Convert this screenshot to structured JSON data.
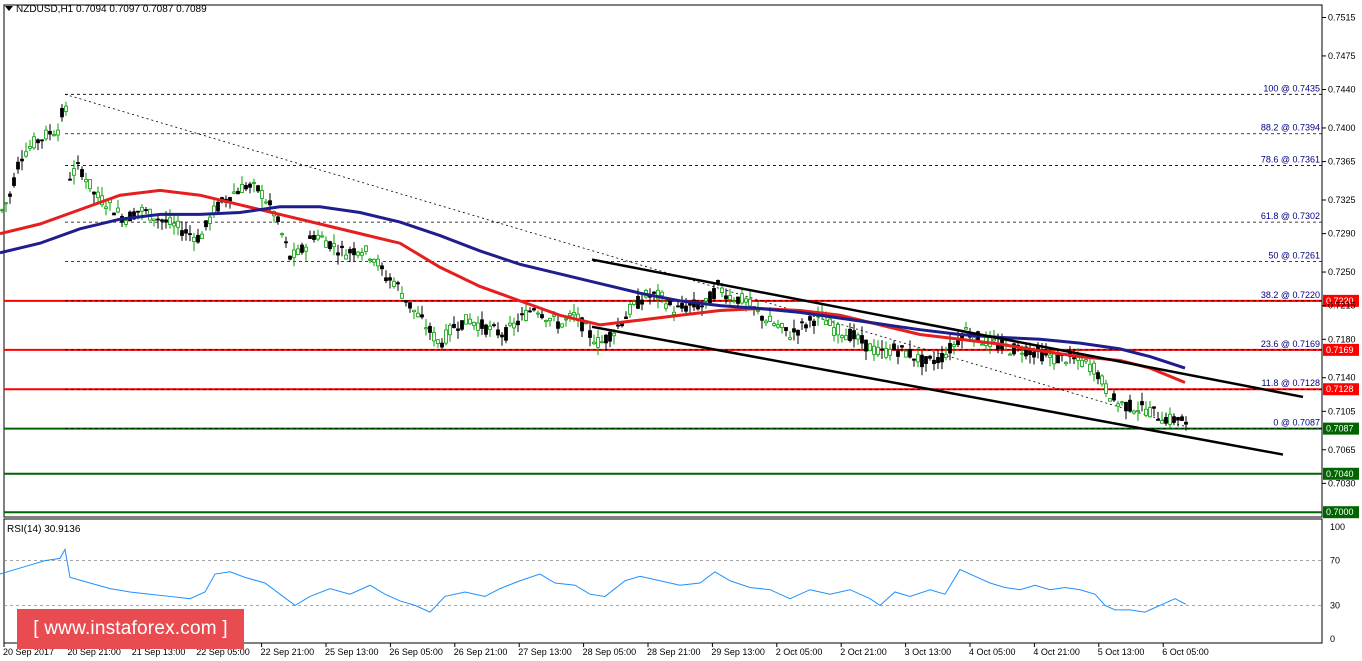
{
  "header": {
    "symbol_line": "NZDUSD,H1  0.7094 0.7097 0.7087 0.7089",
    "rsi_label": "RSI(14) 30.9136"
  },
  "logo": {
    "text": "[ www.instaforex.com ]"
  },
  "colors": {
    "red_level": "#ff0000",
    "green_level": "#006400",
    "ma_red": "#e61e1e",
    "ma_blue": "#1e1e8c",
    "rsi_line": "#1e90ff",
    "candle_bull": "#00a000",
    "candle_bear": "#000000",
    "channel": "#000000"
  },
  "chart_data": [
    {
      "type": "candlestick",
      "symbol": "NZDUSD",
      "timeframe": "H1",
      "ohlc_last": {
        "open": 0.7094,
        "high": 0.7097,
        "low": 0.7087,
        "close": 0.7089
      },
      "y_axis": {
        "ylim": [
          0.6995,
          0.7528
        ],
        "ticks": [
          "0.7515",
          "0.7475",
          "0.7440",
          "0.7400",
          "0.7365",
          "0.7325",
          "0.7290",
          "0.7250",
          "0.7215",
          "0.7180",
          "0.7140",
          "0.7105",
          "0.7065",
          "0.7030"
        ]
      },
      "x_axis": {
        "ticks": [
          "20 Sep 2017",
          "20 Sep 21:00",
          "21 Sep 13:00",
          "22 Sep 05:00",
          "22 Sep 21:00",
          "25 Sep 13:00",
          "26 Sep 05:00",
          "26 Sep 21:00",
          "27 Sep 13:00",
          "28 Sep 05:00",
          "28 Sep 21:00",
          "29 Sep 13:00",
          "2 Oct 05:00",
          "2 Oct 21:00",
          "3 Oct 13:00",
          "4 Oct 05:00",
          "4 Oct 21:00",
          "5 Oct 13:00",
          "6 Oct 05:00"
        ]
      },
      "price_path": [
        [
          0,
          0.731
        ],
        [
          10,
          0.733
        ],
        [
          20,
          0.737
        ],
        [
          35,
          0.7385
        ],
        [
          50,
          0.7395
        ],
        [
          60,
          0.74
        ],
        [
          65,
          0.7435
        ],
        [
          70,
          0.735
        ],
        [
          80,
          0.736
        ],
        [
          95,
          0.733
        ],
        [
          110,
          0.732
        ],
        [
          125,
          0.7305
        ],
        [
          140,
          0.7315
        ],
        [
          160,
          0.7305
        ],
        [
          180,
          0.7295
        ],
        [
          200,
          0.7285
        ],
        [
          215,
          0.7315
        ],
        [
          230,
          0.733
        ],
        [
          245,
          0.734
        ],
        [
          260,
          0.7335
        ],
        [
          275,
          0.731
        ],
        [
          290,
          0.7265
        ],
        [
          300,
          0.727
        ],
        [
          315,
          0.729
        ],
        [
          330,
          0.728
        ],
        [
          345,
          0.727
        ],
        [
          360,
          0.7275
        ],
        [
          375,
          0.7265
        ],
        [
          385,
          0.7245
        ],
        [
          395,
          0.724
        ],
        [
          410,
          0.7215
        ],
        [
          425,
          0.7195
        ],
        [
          440,
          0.7175
        ],
        [
          455,
          0.7195
        ],
        [
          470,
          0.72
        ],
        [
          490,
          0.719
        ],
        [
          505,
          0.7185
        ],
        [
          520,
          0.72
        ],
        [
          535,
          0.7215
        ],
        [
          545,
          0.7205
        ],
        [
          560,
          0.7195
        ],
        [
          575,
          0.7205
        ],
        [
          590,
          0.7185
        ],
        [
          600,
          0.7175
        ],
        [
          615,
          0.719
        ],
        [
          630,
          0.721
        ],
        [
          645,
          0.7225
        ],
        [
          660,
          0.7225
        ],
        [
          675,
          0.721
        ],
        [
          690,
          0.7215
        ],
        [
          705,
          0.7215
        ],
        [
          718,
          0.7235
        ],
        [
          730,
          0.7225
        ],
        [
          745,
          0.722
        ],
        [
          760,
          0.7205
        ],
        [
          775,
          0.7195
        ],
        [
          790,
          0.7185
        ],
        [
          805,
          0.7195
        ],
        [
          820,
          0.7205
        ],
        [
          835,
          0.719
        ],
        [
          850,
          0.7185
        ],
        [
          865,
          0.7175
        ],
        [
          880,
          0.7165
        ],
        [
          895,
          0.717
        ],
        [
          910,
          0.7165
        ],
        [
          925,
          0.7155
        ],
        [
          940,
          0.716
        ],
        [
          955,
          0.7175
        ],
        [
          965,
          0.719
        ],
        [
          980,
          0.718
        ],
        [
          995,
          0.7175
        ],
        [
          1010,
          0.717
        ],
        [
          1025,
          0.717
        ],
        [
          1040,
          0.7165
        ],
        [
          1055,
          0.716
        ],
        [
          1070,
          0.716
        ],
        [
          1085,
          0.7155
        ],
        [
          1095,
          0.715
        ],
        [
          1105,
          0.713
        ],
        [
          1115,
          0.7115
        ],
        [
          1130,
          0.711
        ],
        [
          1145,
          0.7108
        ],
        [
          1160,
          0.71
        ],
        [
          1172,
          0.7095
        ],
        [
          1180,
          0.71
        ],
        [
          1186,
          0.7089
        ]
      ],
      "series": [
        {
          "name": "MA red",
          "points": [
            [
              0,
              0.729
            ],
            [
              40,
              0.73
            ],
            [
              80,
              0.7315
            ],
            [
              120,
              0.733
            ],
            [
              160,
              0.7335
            ],
            [
              200,
              0.733
            ],
            [
              240,
              0.732
            ],
            [
              280,
              0.731
            ],
            [
              320,
              0.73
            ],
            [
              360,
              0.729
            ],
            [
              400,
              0.728
            ],
            [
              440,
              0.7255
            ],
            [
              480,
              0.7235
            ],
            [
              520,
              0.722
            ],
            [
              560,
              0.7205
            ],
            [
              600,
              0.7195
            ],
            [
              640,
              0.72
            ],
            [
              680,
              0.7205
            ],
            [
              720,
              0.721
            ],
            [
              760,
              0.7212
            ],
            [
              800,
              0.721
            ],
            [
              840,
              0.7205
            ],
            [
              880,
              0.7195
            ],
            [
              920,
              0.7185
            ],
            [
              960,
              0.718
            ],
            [
              1000,
              0.7175
            ],
            [
              1040,
              0.7168
            ],
            [
              1080,
              0.7162
            ],
            [
              1120,
              0.7158
            ],
            [
              1150,
              0.715
            ],
            [
              1185,
              0.7135
            ]
          ]
        },
        {
          "name": "MA blue",
          "points": [
            [
              0,
              0.727
            ],
            [
              40,
              0.728
            ],
            [
              80,
              0.7295
            ],
            [
              120,
              0.7305
            ],
            [
              160,
              0.731
            ],
            [
              200,
              0.731
            ],
            [
              240,
              0.7312
            ],
            [
              280,
              0.7318
            ],
            [
              320,
              0.7318
            ],
            [
              360,
              0.7312
            ],
            [
              400,
              0.7302
            ],
            [
              440,
              0.7288
            ],
            [
              480,
              0.7272
            ],
            [
              520,
              0.7258
            ],
            [
              560,
              0.7248
            ],
            [
              600,
              0.7238
            ],
            [
              640,
              0.7228
            ],
            [
              680,
              0.722
            ],
            [
              720,
              0.7215
            ],
            [
              760,
              0.7212
            ],
            [
              800,
              0.7208
            ],
            [
              840,
              0.7202
            ],
            [
              880,
              0.7196
            ],
            [
              920,
              0.719
            ],
            [
              960,
              0.7185
            ],
            [
              1000,
              0.7182
            ],
            [
              1040,
              0.718
            ],
            [
              1080,
              0.7176
            ],
            [
              1120,
              0.717
            ],
            [
              1150,
              0.7162
            ],
            [
              1185,
              0.715
            ]
          ]
        }
      ],
      "levels": [
        {
          "label": "0.7220",
          "value": 0.722,
          "color": "#ff0000"
        },
        {
          "label": "0.7169",
          "value": 0.7169,
          "color": "#ff0000"
        },
        {
          "label": "0.7128",
          "value": 0.7128,
          "color": "#ff0000"
        },
        {
          "label": "0.7087",
          "value": 0.7087,
          "color": "#006400"
        },
        {
          "label": "0.7040",
          "value": 0.704,
          "color": "#006400"
        },
        {
          "label": "0.7000",
          "value": 0.7,
          "color": "#006400"
        }
      ],
      "fibonacci": [
        {
          "label": "100 @ 0.7435",
          "value": 0.7435
        },
        {
          "label": "88.2 @ 0.7394",
          "value": 0.7394
        },
        {
          "label": "78.6 @ 0.7361",
          "value": 0.7361
        },
        {
          "label": "61.8 @ 0.7302",
          "value": 0.7302
        },
        {
          "label": "50 @ 0.7261",
          "value": 0.7261
        },
        {
          "label": "38.2 @ 0.7220",
          "value": 0.722
        },
        {
          "label": "23.6 @ 0.7169",
          "value": 0.7169
        },
        {
          "label": "11.8 @ 0.7128",
          "value": 0.7128
        },
        {
          "label": "0 @ 0.7087",
          "value": 0.7087
        }
      ],
      "fib_line_start": 65,
      "fib_line_end": 1325,
      "channel_lines": [
        {
          "from": [
            592,
            0.7263
          ],
          "to": [
            1303,
            0.712
          ]
        },
        {
          "from": [
            592,
            0.7193
          ],
          "to": [
            1283,
            0.706
          ]
        }
      ],
      "dotted_trend": {
        "from": [
          65,
          0.7435
        ],
        "to": [
          1186,
          0.7089
        ]
      }
    },
    {
      "type": "line",
      "name": "RSI(14)",
      "value": 30.9136,
      "ylim": [
        0,
        100
      ],
      "ticks": [
        "100",
        "70",
        "30",
        "0"
      ],
      "levels": [
        70,
        30
      ],
      "points": [
        [
          0,
          58
        ],
        [
          15,
          62
        ],
        [
          30,
          66
        ],
        [
          45,
          70
        ],
        [
          60,
          72
        ],
        [
          65,
          80
        ],
        [
          70,
          55
        ],
        [
          90,
          50
        ],
        [
          110,
          45
        ],
        [
          130,
          42
        ],
        [
          150,
          40
        ],
        [
          170,
          38
        ],
        [
          190,
          36
        ],
        [
          205,
          42
        ],
        [
          215,
          58
        ],
        [
          230,
          60
        ],
        [
          245,
          55
        ],
        [
          265,
          50
        ],
        [
          280,
          40
        ],
        [
          295,
          30
        ],
        [
          310,
          38
        ],
        [
          330,
          45
        ],
        [
          350,
          40
        ],
        [
          370,
          48
        ],
        [
          385,
          40
        ],
        [
          400,
          34
        ],
        [
          415,
          30
        ],
        [
          430,
          24
        ],
        [
          445,
          38
        ],
        [
          465,
          42
        ],
        [
          485,
          38
        ],
        [
          500,
          45
        ],
        [
          520,
          52
        ],
        [
          540,
          58
        ],
        [
          555,
          50
        ],
        [
          575,
          48
        ],
        [
          590,
          40
        ],
        [
          605,
          38
        ],
        [
          625,
          52
        ],
        [
          640,
          56
        ],
        [
          660,
          52
        ],
        [
          680,
          48
        ],
        [
          700,
          50
        ],
        [
          715,
          60
        ],
        [
          730,
          52
        ],
        [
          750,
          46
        ],
        [
          770,
          44
        ],
        [
          790,
          36
        ],
        [
          810,
          44
        ],
        [
          830,
          40
        ],
        [
          850,
          44
        ],
        [
          870,
          36
        ],
        [
          880,
          30
        ],
        [
          895,
          42
        ],
        [
          910,
          38
        ],
        [
          930,
          44
        ],
        [
          945,
          40
        ],
        [
          960,
          62
        ],
        [
          975,
          56
        ],
        [
          990,
          50
        ],
        [
          1005,
          46
        ],
        [
          1020,
          44
        ],
        [
          1035,
          48
        ],
        [
          1050,
          44
        ],
        [
          1065,
          46
        ],
        [
          1080,
          44
        ],
        [
          1095,
          40
        ],
        [
          1105,
          30
        ],
        [
          1115,
          26
        ],
        [
          1130,
          26
        ],
        [
          1145,
          24
        ],
        [
          1155,
          28
        ],
        [
          1165,
          32
        ],
        [
          1175,
          36
        ],
        [
          1186,
          31
        ]
      ]
    }
  ]
}
